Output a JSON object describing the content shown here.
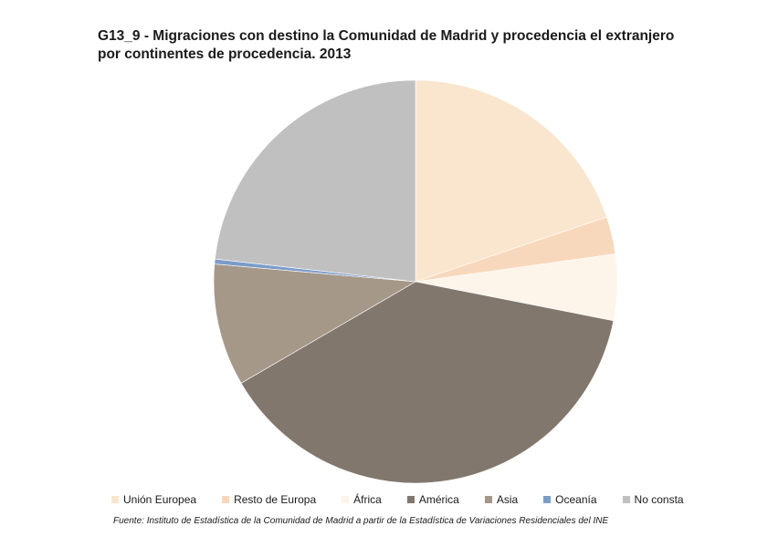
{
  "chart_data": {
    "type": "pie",
    "title_lines": [
      "G13_9 - Migraciones con destino la Comunidad de Madrid y procedencia el extranjero",
      "por continentes de procedencia. 2013"
    ],
    "categories": [
      "Unión Europea",
      "Resto de Europa",
      "África",
      "América",
      "Asia",
      "Oceanía",
      "No consta"
    ],
    "values": [
      19.8,
      3.0,
      5.3,
      38.5,
      9.8,
      0.4,
      23.2
    ],
    "colors": [
      "#FAE6CE",
      "#F8D8BC",
      "#FDF4EA",
      "#81776D",
      "#A69889",
      "#7B9CC8",
      "#C0C0C0"
    ],
    "legend_position": "bottom",
    "source": "Fuente: Instituto de Estadística de la Comunidad de Madrid a partir de la Estadística de Variaciones Residenciales del INE"
  }
}
